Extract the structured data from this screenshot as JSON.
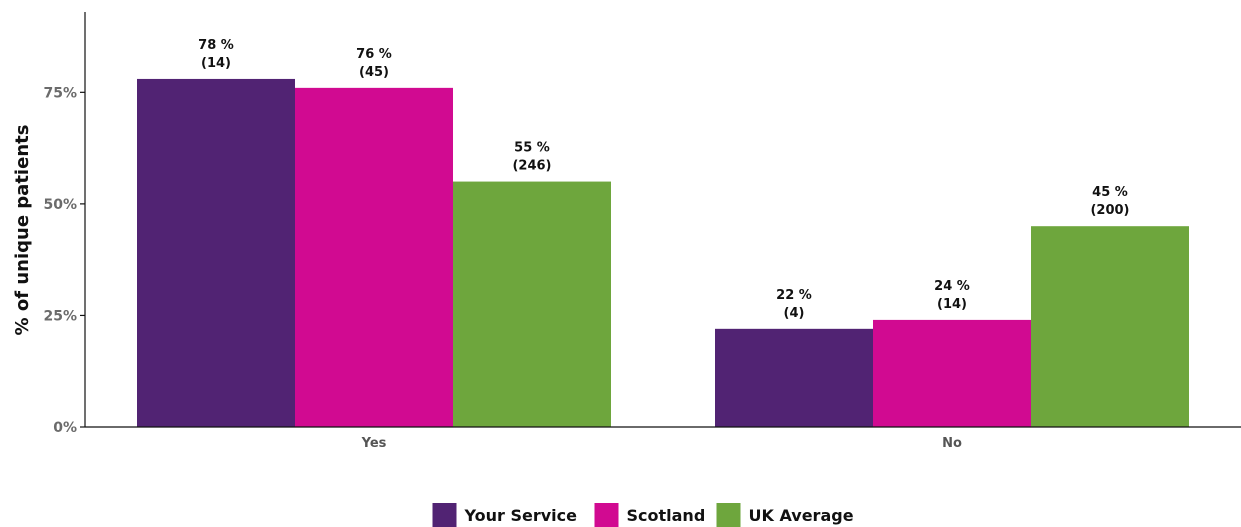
{
  "chart_data": {
    "type": "bar",
    "categories": [
      "Yes",
      "No"
    ],
    "series": [
      {
        "name": "Your Service",
        "color": "#512373",
        "values": [
          78,
          22
        ],
        "labels": [
          "78 %",
          "22 %"
        ],
        "counts": [
          "(14)",
          "(4)"
        ]
      },
      {
        "name": "Scotland",
        "color": "#d10a91",
        "values": [
          76,
          24
        ],
        "labels": [
          "76 %",
          "24 %"
        ],
        "counts": [
          "(45)",
          "(14)"
        ]
      },
      {
        "name": "UK Average",
        "color": "#6ea63d",
        "values": [
          55,
          45
        ],
        "labels": [
          "55 %",
          "45 %"
        ],
        "counts": [
          "(246)",
          "(200)"
        ]
      }
    ],
    "ylabel": "% of unique patients",
    "xlabel": "",
    "ylim": [
      0,
      93
    ],
    "yticks": [
      0,
      25,
      50,
      75
    ],
    "ytick_labels": [
      "0%",
      "25%",
      "50%",
      "75%"
    ],
    "grid": false,
    "legend_position": "bottom"
  }
}
